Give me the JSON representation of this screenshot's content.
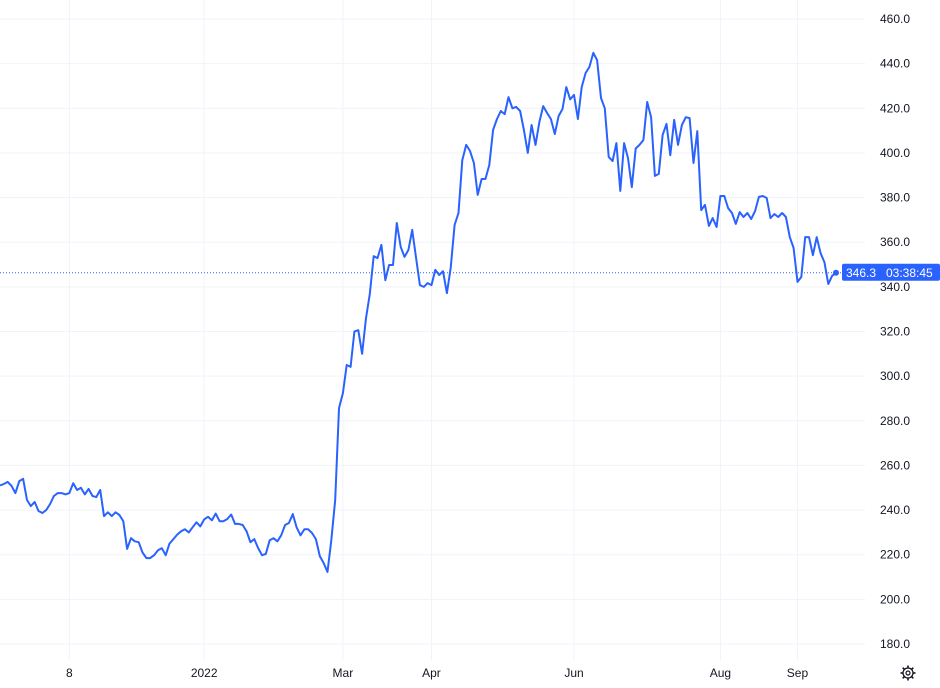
{
  "chart_data": {
    "type": "line",
    "title": "",
    "xlabel": "",
    "ylabel": "",
    "ylim": [
      180,
      460
    ],
    "y_ticks": [
      "180.0",
      "200.0",
      "220.0",
      "240.0",
      "260.0",
      "280.0",
      "300.0",
      "320.0",
      "340.0",
      "360.0",
      "380.0",
      "400.0",
      "420.0",
      "440.0",
      "460.0"
    ],
    "x_ticks": [
      {
        "label": "8",
        "index": 18
      },
      {
        "label": "2022",
        "index": 53
      },
      {
        "label": "Mar",
        "index": 89
      },
      {
        "label": "Apr",
        "index": 112
      },
      {
        "label": "Jun",
        "index": 149
      },
      {
        "label": "Aug",
        "index": 187
      },
      {
        "label": "Sep",
        "index": 207
      }
    ],
    "grid": true,
    "line_color": "#2962ff",
    "last_price": {
      "value": 346.3,
      "label": "346.3",
      "countdown": "03:38:45"
    },
    "values": [
      251,
      251.7,
      252.6,
      250.8,
      247.6,
      253,
      254,
      244.5,
      241.8,
      243.6,
      239.6,
      238.7,
      240,
      242.7,
      246.3,
      247.6,
      247.6,
      247,
      247.6,
      252,
      249,
      250,
      247,
      249.5,
      246.3,
      245.8,
      249,
      237.3,
      239,
      237.3,
      239,
      237.8,
      235,
      222.6,
      227.4,
      226,
      225.6,
      221,
      218.5,
      218.5,
      219.8,
      222,
      222.9,
      219.8,
      225,
      227,
      229,
      230.5,
      231.4,
      230,
      232.3,
      234.5,
      232.7,
      235.8,
      237,
      235.4,
      238.4,
      235,
      235,
      236,
      238,
      233.8,
      233.8,
      233.3,
      230.5,
      225.6,
      227,
      223,
      219.8,
      220.3,
      226.5,
      227.4,
      226,
      228.7,
      233.3,
      234.2,
      238.2,
      232.3,
      228.7,
      231.4,
      231.4,
      229.7,
      227,
      219.4,
      216.3,
      212.3,
      226.5,
      244.5,
      285.7,
      292.4,
      305,
      304.2,
      320,
      320.6,
      310,
      326,
      336.8,
      353.8,
      352.9,
      358.8,
      343,
      349.8,
      349.8,
      368.6,
      357.9,
      353.4,
      356.5,
      365.5,
      352.9,
      340.8,
      340,
      341.7,
      340.8,
      347.6,
      345.3,
      347,
      337.2,
      348.5,
      367.7,
      373.1,
      396.8,
      403.6,
      400.9,
      395.5,
      381.2,
      388.3,
      388.3,
      394.6,
      410.3,
      415.2,
      418.8,
      417.4,
      425,
      420,
      420.6,
      418.8,
      410.3,
      400,
      412.5,
      403.6,
      413.9,
      421,
      417.9,
      415.2,
      408.5,
      416.5,
      419.7,
      429.5,
      424,
      426,
      415.2,
      429.5,
      435.8,
      438.5,
      444.8,
      441.6,
      424.6,
      420,
      398.2,
      396.4,
      404.4,
      383,
      404.4,
      397.7,
      384.7,
      402,
      403.6,
      405.8,
      422.8,
      416,
      389.7,
      390.6,
      408,
      413,
      399,
      414.8,
      403.6,
      412.5,
      416,
      415.6,
      395.5,
      409.8,
      374.4,
      376.7,
      367.3,
      370.8,
      366.8,
      380.7,
      380.7,
      375.3,
      373.1,
      368.2,
      373.5,
      371.3,
      373.1,
      370.4,
      374,
      380.3,
      380.7,
      379.8,
      370.8,
      372.6,
      371.3,
      373.1,
      371.3,
      362.3,
      357.4,
      342.2,
      344.4,
      362.3,
      362.3,
      354.2,
      362.3,
      355.1,
      351.1,
      341.3,
      344.9,
      346.3
    ]
  },
  "settings_icon": "gear-icon"
}
